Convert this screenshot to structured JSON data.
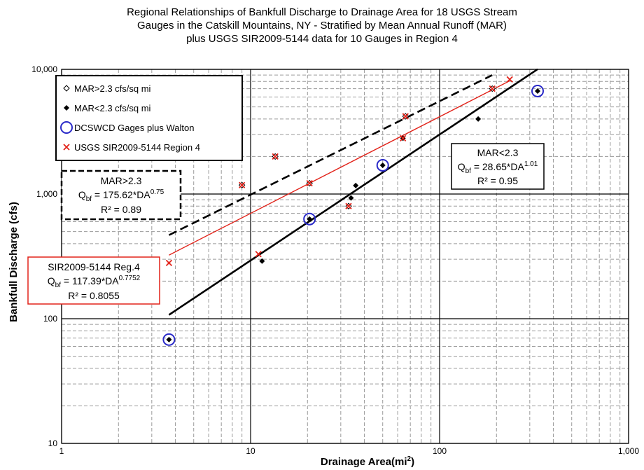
{
  "chart_data": {
    "type": "scatter",
    "title_lines": [
      "Regional Relationships of Bankfull Discharge to Drainage Area for 18 USGS Stream",
      "Gauges in the Catskill Mountains, NY - Stratified by Mean Annual Runoff (MAR)",
      "plus USGS SIR2009-5144 data for 10 Gauges in Region 4"
    ],
    "xlabel": "Drainage Area(mi",
    "xlabel_sup": "2",
    "xlabel_end": ")",
    "ylabel": "Bankfull Discharge (cfs)",
    "x_scale": "log",
    "y_scale": "log",
    "xlim": [
      1,
      1000
    ],
    "ylim": [
      10,
      10000
    ],
    "x_ticks": [
      {
        "value": 1,
        "label": "1"
      },
      {
        "value": 10,
        "label": "10"
      },
      {
        "value": 100,
        "label": "100"
      },
      {
        "value": 1000,
        "label": "1,000"
      }
    ],
    "y_ticks": [
      {
        "value": 10,
        "label": "10"
      },
      {
        "value": 100,
        "label": "100"
      },
      {
        "value": 1000,
        "label": "1,000"
      },
      {
        "value": 10000,
        "label": "10,000"
      }
    ],
    "grid": "major solid, minor dashed",
    "legend": {
      "placement": "top-left",
      "entries": [
        {
          "marker": "open-diamond",
          "label": "MAR>2.3 cfs/sq mi"
        },
        {
          "marker": "filled-diamond",
          "label": "MAR<2.3 cfs/sq mi"
        },
        {
          "marker": "blue-circle",
          "label": "DCSWCD Gages plus Walton"
        },
        {
          "marker": "red-x",
          "label": "USGS SIR2009-5144 Region 4"
        }
      ]
    },
    "series": [
      {
        "name": "MAR>2.3 cfs/sq mi",
        "marker": "open-diamond",
        "points": [
          [
            9,
            1180
          ],
          [
            13.5,
            2000
          ],
          [
            20.5,
            1220
          ],
          [
            33,
            800
          ],
          [
            66,
            4200
          ],
          [
            190,
            7000
          ]
        ]
      },
      {
        "name": "MAR<2.3 cfs/sq mi",
        "marker": "filled-diamond",
        "points": [
          [
            3.7,
            68
          ],
          [
            11.5,
            290
          ],
          [
            20.5,
            630
          ],
          [
            34,
            930
          ],
          [
            36,
            1170
          ],
          [
            50,
            1700
          ],
          [
            64,
            2800
          ],
          [
            160,
            4000
          ],
          [
            330,
            6700
          ]
        ]
      },
      {
        "name": "DCSWCD Gages plus Walton",
        "marker": "blue-circle",
        "points": [
          [
            3.7,
            68
          ],
          [
            20.5,
            630
          ],
          [
            50,
            1700
          ],
          [
            330,
            6700
          ]
        ]
      },
      {
        "name": "USGS SIR2009-5144 Region 4",
        "marker": "red-x",
        "points": [
          [
            3.7,
            280
          ],
          [
            9,
            1180
          ],
          [
            11,
            330
          ],
          [
            13.5,
            2000
          ],
          [
            20.5,
            1220
          ],
          [
            33,
            800
          ],
          [
            64,
            2800
          ],
          [
            66,
            4200
          ],
          [
            190,
            7000
          ],
          [
            235,
            8300
          ]
        ]
      }
    ],
    "trendlines": [
      {
        "label": "MAR>2.3",
        "coef": 175.62,
        "exp": 0.75,
        "x_range": [
          3.7,
          190
        ],
        "color": "#000000",
        "style": "dashed"
      },
      {
        "label": "MAR<2.3",
        "coef": 28.65,
        "exp": 1.01,
        "x_range": [
          3.7,
          330
        ],
        "color": "#000000",
        "style": "solid"
      },
      {
        "label": "SIR2009-5144 Reg.4",
        "coef": 117.39,
        "exp": 0.7752,
        "x_range": [
          3.7,
          235
        ],
        "color": "#e2231a",
        "style": "solid"
      }
    ],
    "annotations": {
      "mar_high": {
        "heading": "MAR>2.3",
        "eq_q": "Q",
        "eq_sub": "bf",
        "eq_main": " = 175.62*DA",
        "eq_sup": "0.75",
        "r2": "R² = 0.89",
        "border": "dashed-black"
      },
      "mar_low": {
        "heading": "MAR<2.3",
        "eq_q": "Q",
        "eq_sub": "bf",
        "eq_main": " = 28.65*DA",
        "eq_sup": "1.01",
        "r2": "R² = 0.95",
        "border": "solid-black"
      },
      "sir": {
        "heading": "SIR2009-5144 Reg.4",
        "eq_q": "Q",
        "eq_sub": "bf",
        "eq_main": " = 117.39*DA",
        "eq_sup": "0.7752",
        "r2": "R² = 0.8055",
        "border": "solid-red"
      }
    }
  }
}
